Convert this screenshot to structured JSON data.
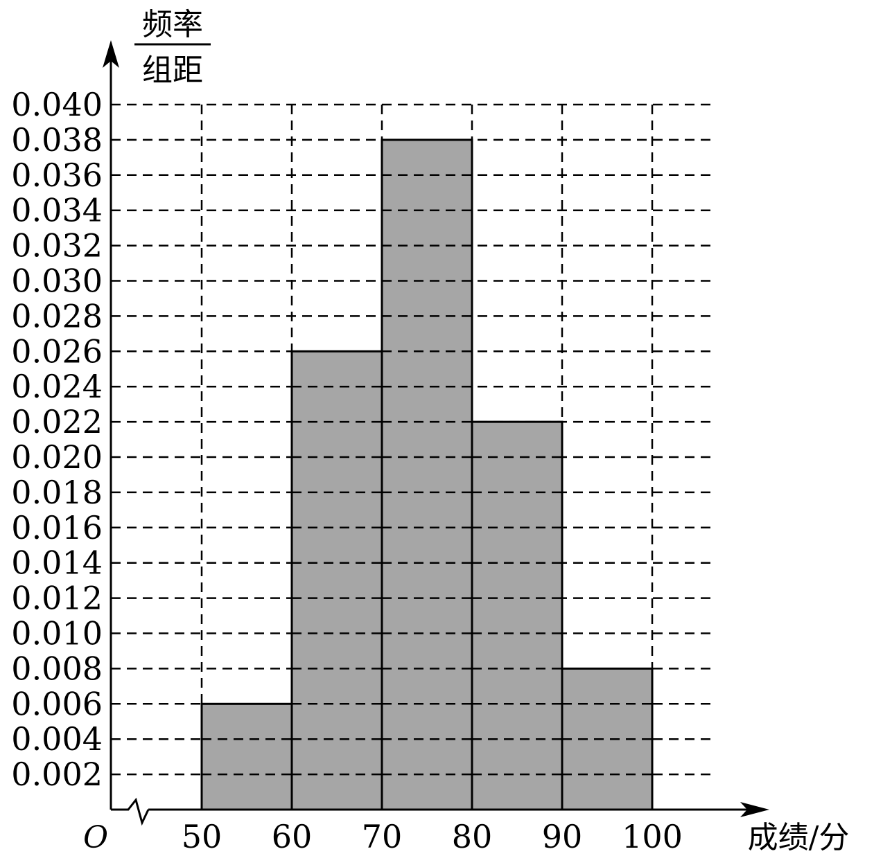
{
  "chart_data": {
    "type": "bar",
    "histogram": true,
    "bins": [
      {
        "from": 50,
        "to": 60,
        "value": 0.006
      },
      {
        "from": 60,
        "to": 70,
        "value": 0.026
      },
      {
        "from": 70,
        "to": 80,
        "value": 0.038
      },
      {
        "from": 80,
        "to": 90,
        "value": 0.022
      },
      {
        "from": 90,
        "to": 100,
        "value": 0.008
      }
    ],
    "x_ticks": [
      "50",
      "60",
      "70",
      "80",
      "90",
      "100"
    ],
    "y_ticks": [
      "0.002",
      "0.004",
      "0.006",
      "0.008",
      "0.010",
      "0.012",
      "0.014",
      "0.016",
      "0.018",
      "0.020",
      "0.022",
      "0.024",
      "0.026",
      "0.028",
      "0.030",
      "0.032",
      "0.034",
      "0.036",
      "0.038",
      "0.040"
    ],
    "xlim": [
      50,
      100
    ],
    "ylim": [
      0,
      0.04
    ],
    "ylabel_numerator": "频率",
    "ylabel_denominator": "组距",
    "xlabel": "成绩/分",
    "origin_label": "O",
    "grid": "dashed",
    "axis_break": true,
    "bar_color": "#a6a6a6"
  }
}
